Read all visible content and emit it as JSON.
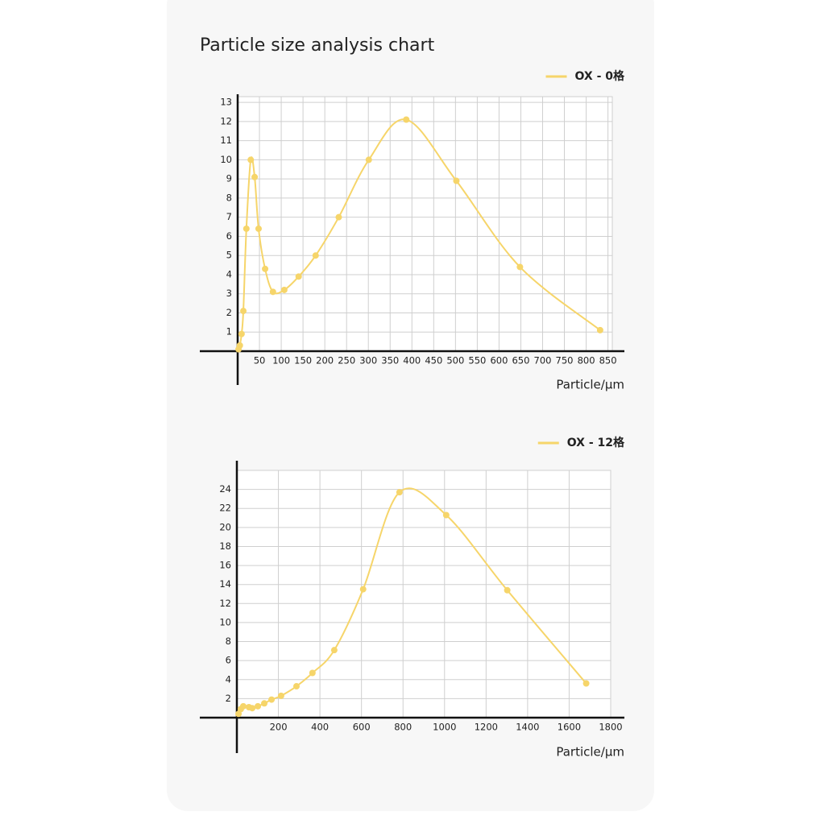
{
  "title": "Particle size analysis chart",
  "chart_data": [
    {
      "type": "line",
      "smooth": true,
      "markers": true,
      "grid": true,
      "legend": "top-right",
      "x_label": "Particle/μm",
      "x": [
        2,
        5,
        9,
        13,
        20,
        30,
        39,
        48,
        63,
        81,
        107,
        140,
        179,
        232,
        301,
        387,
        502,
        648,
        832
      ],
      "series": [
        {
          "name": "OX - 0格",
          "color": "#f6d56a",
          "values": [
            0.1,
            0.3,
            0.9,
            2.1,
            6.4,
            10,
            9.1,
            6.4,
            4.3,
            3.1,
            3.2,
            3.9,
            5.0,
            7.0,
            10,
            12.1,
            8.9,
            4.4,
            1.1
          ]
        }
      ],
      "xlim": [
        0,
        860
      ],
      "xticks": [
        50,
        100,
        150,
        200,
        250,
        300,
        350,
        400,
        450,
        500,
        550,
        600,
        650,
        700,
        750,
        800,
        850
      ],
      "ylim": [
        0,
        13.3
      ],
      "yticks": [
        1,
        2,
        3,
        4,
        5,
        6,
        7,
        8,
        9,
        10,
        11,
        12,
        13
      ]
    },
    {
      "type": "line",
      "smooth": true,
      "markers": true,
      "grid": true,
      "legend": "top-right",
      "x_label": "Particle/μm",
      "x": [
        8,
        19,
        31,
        58,
        74,
        101,
        132,
        167,
        213,
        287,
        364,
        469,
        608,
        783,
        1008,
        1302,
        1682
      ],
      "series": [
        {
          "name": "OX - 12格",
          "color": "#f6d56a",
          "values": [
            0.4,
            0.9,
            1.2,
            1.1,
            1.0,
            1.2,
            1.5,
            1.9,
            2.3,
            3.3,
            4.7,
            7.1,
            13.5,
            23.7,
            21.3,
            13.4,
            3.6
          ]
        }
      ],
      "xlim": [
        0,
        1800
      ],
      "xticks": [
        200,
        400,
        600,
        800,
        1000,
        1200,
        1400,
        1600,
        1800
      ],
      "ylim": [
        0,
        26
      ],
      "yticks": [
        2,
        4,
        6,
        8,
        10,
        12,
        14,
        16,
        18,
        20,
        22,
        24
      ]
    }
  ]
}
